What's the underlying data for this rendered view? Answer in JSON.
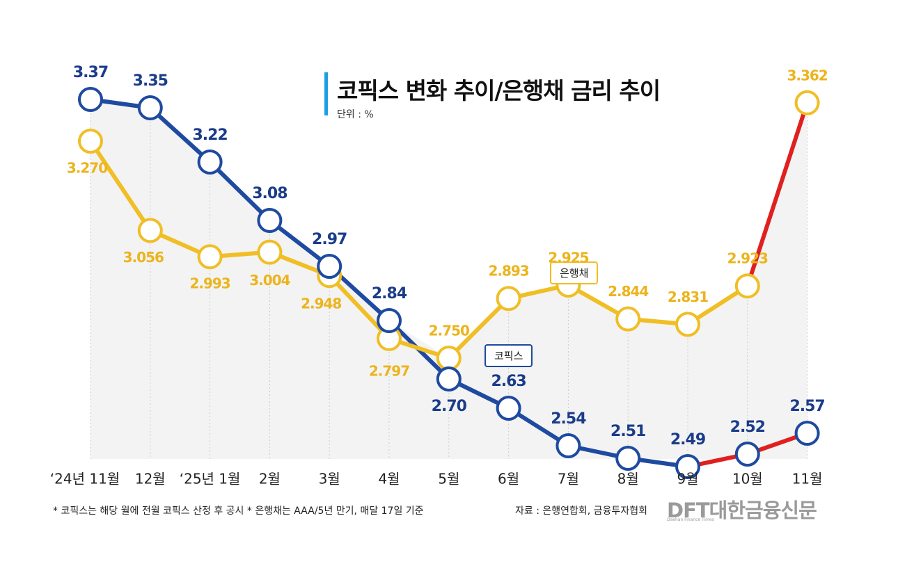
{
  "header": {
    "title": "코픽스 변화 추이/은행채 금리 추이",
    "unit": "단위 : %"
  },
  "footer": {
    "note": "* 코픽스는 해당 월에 전월 코픽스 산정 후 공시  * 은행채는 AAA/5년 만기, 매달 17일 기준",
    "source": "자료 : 은행연합회, 금융투자협회",
    "logo": "DFT대한금융신문",
    "logo_sub": "Daehan Finance Times"
  },
  "colors": {
    "kofix": "#1e4aa0",
    "bank_bond": "#f0be25",
    "highlight": "#e02020",
    "grid": "#cccccc",
    "area": "#f3f3f3"
  },
  "chart_data": {
    "type": "line",
    "categories": [
      "‘24년 11월",
      "12월",
      "‘25년 1월",
      "2월",
      "3월",
      "4월",
      "5월",
      "6월",
      "7월",
      "8월",
      "9월",
      "10월",
      "11월"
    ],
    "series": [
      {
        "name": "코픽스",
        "values": [
          3.37,
          3.35,
          3.22,
          3.08,
          2.97,
          2.84,
          2.7,
          2.63,
          2.54,
          2.51,
          2.49,
          2.52,
          2.57
        ],
        "labels": [
          "3.37",
          "3.35",
          "3.22",
          "3.08",
          "2.97",
          "2.84",
          "2.70",
          "2.63",
          "2.54",
          "2.51",
          "2.49",
          "2.52",
          "2.57"
        ],
        "color": "#1e4aa0",
        "highlight_from_index": 10
      },
      {
        "name": "은행채",
        "values": [
          3.27,
          3.056,
          2.993,
          3.004,
          2.948,
          2.797,
          2.75,
          2.893,
          2.925,
          2.844,
          2.831,
          2.923,
          3.362
        ],
        "labels": [
          "3.270",
          "3.056",
          "2.993",
          "3.004",
          "2.948",
          "2.797",
          "2.750",
          "2.893",
          "2.925",
          "2.844",
          "2.831",
          "2.923",
          "3.362"
        ],
        "color": "#f0be25",
        "highlight_from_index": 11
      }
    ],
    "legend": "inline callouts"
  }
}
